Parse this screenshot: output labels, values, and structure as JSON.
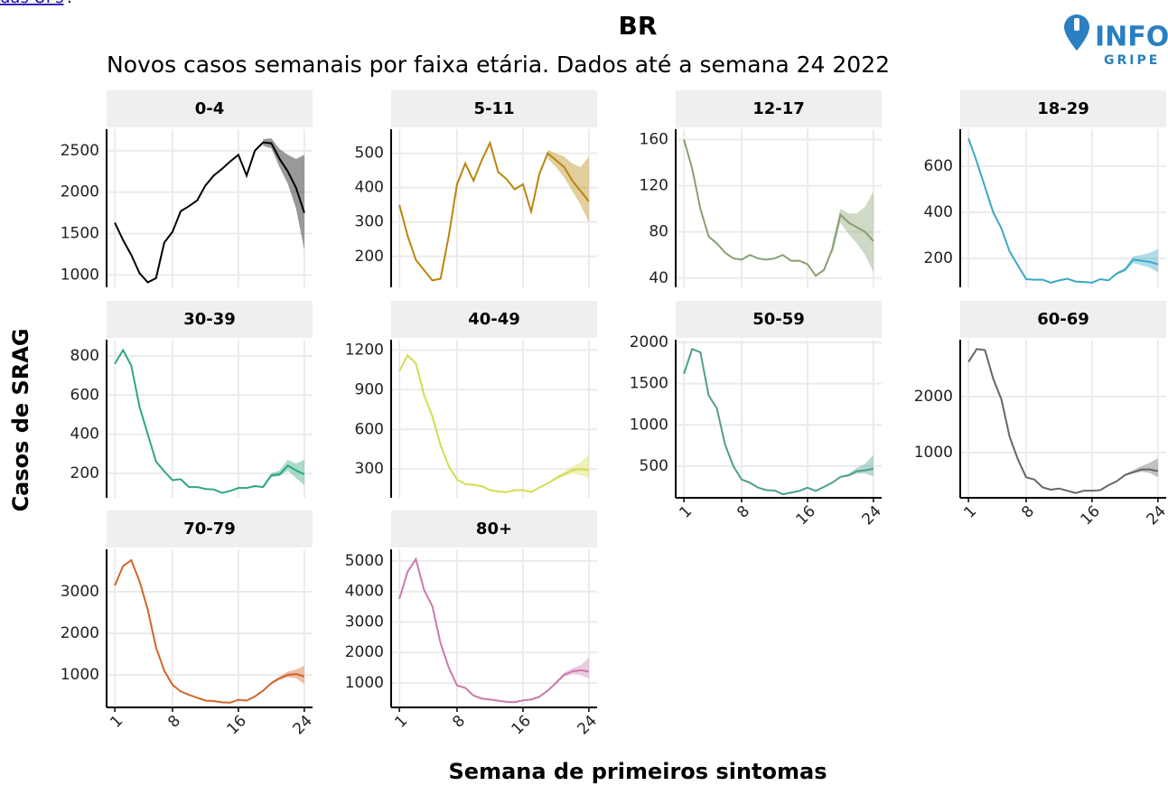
{
  "figure": {
    "link": "das UFs",
    "link_tail": ".",
    "title": "BR",
    "subtitle": "Novos casos semanais por faixa etária. Dados até a semana 24 2022",
    "logo_top": "INFO",
    "logo_bottom": "GRIPE",
    "y_label": "Casos de SRAG",
    "x_label": "Semana de primeiros sintomas"
  },
  "chart_data": [
    {
      "type": "line",
      "title": "0-4",
      "color": "#000000",
      "x": [
        1,
        2,
        3,
        4,
        5,
        6,
        7,
        8,
        9,
        10,
        11,
        12,
        13,
        14,
        15,
        16,
        17,
        18,
        19,
        20,
        21,
        22,
        23,
        24
      ],
      "values": [
        1630,
        1420,
        1240,
        1020,
        910,
        960,
        1390,
        1520,
        1770,
        1830,
        1900,
        2080,
        2200,
        2280,
        2370,
        2450,
        2200,
        2500,
        2600,
        2590,
        2400,
        2250,
        2050,
        1750
      ],
      "band_lower": [
        null,
        null,
        null,
        null,
        null,
        null,
        null,
        null,
        null,
        null,
        null,
        null,
        null,
        null,
        null,
        null,
        null,
        null,
        2560,
        2530,
        2300,
        2100,
        1800,
        1300
      ],
      "band_upper": [
        null,
        null,
        null,
        null,
        null,
        null,
        null,
        null,
        null,
        null,
        null,
        null,
        null,
        null,
        null,
        null,
        null,
        null,
        2640,
        2650,
        2520,
        2450,
        2400,
        2450
      ],
      "xlim": [
        0,
        25
      ],
      "xticks": [
        1,
        8,
        16,
        24
      ],
      "ylim": [
        850,
        2760
      ],
      "yticks": [
        1000,
        1500,
        2000,
        2500
      ]
    },
    {
      "type": "line",
      "title": "5-11",
      "color": "#b8860b",
      "x": [
        1,
        2,
        3,
        4,
        5,
        6,
        7,
        8,
        9,
        10,
        11,
        12,
        13,
        14,
        15,
        16,
        17,
        18,
        19,
        20,
        21,
        22,
        23,
        24
      ],
      "values": [
        350,
        260,
        190,
        160,
        130,
        135,
        260,
        410,
        470,
        420,
        480,
        530,
        445,
        425,
        395,
        410,
        330,
        440,
        500,
        480,
        460,
        420,
        390,
        360
      ],
      "band_lower": [
        null,
        null,
        null,
        null,
        null,
        null,
        null,
        null,
        null,
        null,
        null,
        null,
        null,
        null,
        null,
        null,
        null,
        null,
        485,
        460,
        430,
        390,
        350,
        300
      ],
      "band_upper": [
        null,
        null,
        null,
        null,
        null,
        null,
        null,
        null,
        null,
        null,
        null,
        null,
        null,
        null,
        null,
        null,
        null,
        null,
        510,
        500,
        490,
        470,
        460,
        490
      ],
      "xlim": [
        0,
        25
      ],
      "xticks": [
        1,
        8,
        16,
        24
      ],
      "ylim": [
        110,
        570
      ],
      "yticks": [
        200,
        300,
        400,
        500
      ]
    },
    {
      "type": "line",
      "title": "12-17",
      "color": "#87a06f",
      "x": [
        1,
        2,
        3,
        4,
        5,
        6,
        7,
        8,
        9,
        10,
        11,
        12,
        13,
        14,
        15,
        16,
        17,
        18,
        19,
        20,
        21,
        22,
        23,
        24
      ],
      "values": [
        160,
        135,
        100,
        76,
        70,
        62,
        57,
        56,
        60,
        57,
        56,
        57,
        60,
        55,
        55,
        52,
        42,
        47,
        65,
        95,
        88,
        84,
        80,
        72
      ],
      "band_lower": [
        null,
        null,
        null,
        null,
        null,
        null,
        null,
        null,
        null,
        null,
        null,
        null,
        null,
        null,
        null,
        null,
        null,
        null,
        60,
        88,
        78,
        70,
        60,
        45
      ],
      "band_upper": [
        null,
        null,
        null,
        null,
        null,
        null,
        null,
        null,
        null,
        null,
        null,
        null,
        null,
        null,
        null,
        null,
        null,
        null,
        70,
        100,
        96,
        96,
        102,
        115
      ],
      "xlim": [
        0,
        25
      ],
      "xticks": [
        1,
        8,
        16,
        24
      ],
      "ylim": [
        32,
        169
      ],
      "yticks": [
        40,
        80,
        120,
        160
      ]
    },
    {
      "type": "line",
      "title": "18-29",
      "color": "#3aa8c6",
      "x": [
        1,
        2,
        3,
        4,
        5,
        6,
        7,
        8,
        9,
        10,
        11,
        12,
        13,
        14,
        15,
        16,
        17,
        18,
        19,
        20,
        21,
        22,
        23,
        24
      ],
      "values": [
        720,
        620,
        510,
        400,
        330,
        230,
        170,
        110,
        108,
        108,
        95,
        105,
        112,
        100,
        98,
        95,
        110,
        105,
        135,
        150,
        195,
        190,
        185,
        175
      ],
      "band_lower": [
        null,
        null,
        null,
        null,
        null,
        null,
        null,
        null,
        null,
        null,
        null,
        null,
        null,
        null,
        null,
        null,
        null,
        null,
        130,
        145,
        180,
        170,
        160,
        140
      ],
      "band_upper": [
        null,
        null,
        null,
        null,
        null,
        null,
        null,
        null,
        null,
        null,
        null,
        null,
        null,
        null,
        null,
        null,
        null,
        null,
        140,
        160,
        210,
        215,
        225,
        240
      ],
      "xlim": [
        0,
        25
      ],
      "xticks": [
        1,
        8,
        16,
        24
      ],
      "ylim": [
        75,
        760
      ],
      "yticks": [
        200,
        400,
        600
      ]
    },
    {
      "type": "line",
      "title": "30-39",
      "color": "#2ca87a",
      "x": [
        1,
        2,
        3,
        4,
        5,
        6,
        7,
        8,
        9,
        10,
        11,
        12,
        13,
        14,
        15,
        16,
        17,
        18,
        19,
        20,
        21,
        22,
        23,
        24
      ],
      "values": [
        760,
        830,
        750,
        540,
        400,
        260,
        210,
        165,
        170,
        130,
        130,
        120,
        118,
        100,
        110,
        125,
        125,
        135,
        130,
        190,
        195,
        240,
        215,
        195
      ],
      "band_lower": [
        null,
        null,
        null,
        null,
        null,
        null,
        null,
        null,
        null,
        null,
        null,
        null,
        null,
        null,
        null,
        null,
        null,
        null,
        125,
        180,
        185,
        215,
        175,
        140
      ],
      "band_upper": [
        null,
        null,
        null,
        null,
        null,
        null,
        null,
        null,
        null,
        null,
        null,
        null,
        null,
        null,
        null,
        null,
        null,
        null,
        140,
        200,
        215,
        270,
        250,
        270
      ],
      "xlim": [
        0,
        25
      ],
      "xticks": [
        1,
        8,
        16,
        24
      ],
      "ylim": [
        75,
        883
      ],
      "yticks": [
        200,
        400,
        600,
        800
      ]
    },
    {
      "type": "line",
      "title": "40-49",
      "color": "#d4dc4e",
      "x": [
        1,
        2,
        3,
        4,
        5,
        6,
        7,
        8,
        9,
        10,
        11,
        12,
        13,
        14,
        15,
        16,
        17,
        18,
        19,
        20,
        21,
        22,
        23,
        24
      ],
      "values": [
        1040,
        1160,
        1100,
        860,
        700,
        480,
        320,
        220,
        185,
        180,
        170,
        140,
        130,
        125,
        140,
        140,
        125,
        160,
        190,
        230,
        260,
        290,
        300,
        290
      ],
      "band_lower": [
        null,
        null,
        null,
        null,
        null,
        null,
        null,
        null,
        null,
        null,
        null,
        null,
        null,
        null,
        null,
        null,
        null,
        null,
        185,
        220,
        245,
        265,
        255,
        230
      ],
      "band_upper": [
        null,
        null,
        null,
        null,
        null,
        null,
        null,
        null,
        null,
        null,
        null,
        null,
        null,
        null,
        null,
        null,
        null,
        null,
        195,
        240,
        280,
        320,
        350,
        410
      ],
      "xlim": [
        0,
        25
      ],
      "xticks": [
        1,
        8,
        16,
        24
      ],
      "ylim": [
        82,
        1279
      ],
      "yticks": [
        300,
        600,
        900,
        1200
      ]
    },
    {
      "type": "line",
      "title": "50-59",
      "color": "#4e9e8e",
      "x": [
        1,
        2,
        3,
        4,
        5,
        6,
        7,
        8,
        9,
        10,
        11,
        12,
        13,
        14,
        15,
        16,
        17,
        18,
        19,
        20,
        21,
        22,
        23,
        24
      ],
      "values": [
        1620,
        1920,
        1880,
        1360,
        1200,
        760,
        500,
        340,
        300,
        240,
        210,
        205,
        160,
        180,
        200,
        240,
        200,
        250,
        300,
        370,
        390,
        440,
        450,
        470
      ],
      "band_lower": [
        null,
        null,
        null,
        null,
        null,
        null,
        null,
        null,
        null,
        null,
        null,
        null,
        null,
        null,
        null,
        null,
        null,
        null,
        290,
        360,
        375,
        410,
        410,
        380
      ],
      "band_upper": [
        null,
        null,
        null,
        null,
        null,
        null,
        null,
        null,
        null,
        null,
        null,
        null,
        null,
        null,
        null,
        null,
        null,
        null,
        310,
        380,
        410,
        480,
        530,
        640
      ],
      "xlim": [
        0,
        25
      ],
      "xticks": [
        1,
        8,
        16,
        24
      ],
      "ylim": [
        117,
        2033
      ],
      "yticks": [
        500,
        1000,
        1500,
        2000
      ]
    },
    {
      "type": "line",
      "title": "60-69",
      "color": "#666666",
      "x": [
        1,
        2,
        3,
        4,
        5,
        6,
        7,
        8,
        9,
        10,
        11,
        12,
        13,
        14,
        15,
        16,
        17,
        18,
        19,
        20,
        21,
        22,
        23,
        24
      ],
      "values": [
        2620,
        2850,
        2830,
        2320,
        1950,
        1280,
        880,
        560,
        520,
        380,
        340,
        360,
        320,
        280,
        320,
        320,
        330,
        420,
        490,
        600,
        650,
        700,
        700,
        670
      ],
      "band_lower": [
        null,
        null,
        null,
        null,
        null,
        null,
        null,
        null,
        null,
        null,
        null,
        null,
        null,
        null,
        null,
        null,
        null,
        null,
        480,
        590,
        630,
        660,
        640,
        560
      ],
      "band_upper": [
        null,
        null,
        null,
        null,
        null,
        null,
        null,
        null,
        null,
        null,
        null,
        null,
        null,
        null,
        null,
        null,
        null,
        null,
        500,
        620,
        690,
        760,
        820,
        900
      ],
      "xlim": [
        0,
        25
      ],
      "xticks": [
        1,
        8,
        16,
        24
      ],
      "ylim": [
        194,
        3016
      ],
      "yticks": [
        1000,
        2000
      ]
    },
    {
      "type": "line",
      "title": "70-79",
      "color": "#d2652a",
      "x": [
        1,
        2,
        3,
        4,
        5,
        6,
        7,
        8,
        9,
        10,
        11,
        12,
        13,
        14,
        15,
        16,
        17,
        18,
        19,
        20,
        21,
        22,
        23,
        24
      ],
      "values": [
        3150,
        3620,
        3760,
        3250,
        2570,
        1660,
        1100,
        760,
        600,
        520,
        450,
        380,
        370,
        340,
        330,
        400,
        380,
        480,
        620,
        800,
        920,
        1000,
        1020,
        960
      ],
      "band_lower": [
        null,
        null,
        null,
        null,
        null,
        null,
        null,
        null,
        null,
        null,
        null,
        null,
        null,
        null,
        null,
        null,
        null,
        null,
        600,
        770,
        880,
        940,
        920,
        780
      ],
      "band_upper": [
        null,
        null,
        null,
        null,
        null,
        null,
        null,
        null,
        null,
        null,
        null,
        null,
        null,
        null,
        null,
        null,
        null,
        null,
        640,
        830,
        960,
        1080,
        1130,
        1220
      ],
      "xlim": [
        0,
        25
      ],
      "xticks": [
        1,
        8,
        16,
        24
      ],
      "ylim": [
        217,
        4022
      ],
      "yticks": [
        1000,
        2000,
        3000
      ]
    },
    {
      "type": "line",
      "title": "80+",
      "color": "#cc7aab",
      "x": [
        1,
        2,
        3,
        4,
        5,
        6,
        7,
        8,
        9,
        10,
        11,
        12,
        13,
        14,
        15,
        16,
        17,
        18,
        19,
        20,
        21,
        22,
        23,
        24
      ],
      "values": [
        3760,
        4650,
        5060,
        4050,
        3520,
        2300,
        1500,
        920,
        840,
        590,
        490,
        460,
        420,
        380,
        370,
        430,
        460,
        550,
        750,
        1000,
        1270,
        1380,
        1420,
        1370
      ],
      "band_lower": [
        null,
        null,
        null,
        null,
        null,
        null,
        null,
        null,
        null,
        null,
        null,
        null,
        null,
        null,
        null,
        null,
        null,
        null,
        720,
        960,
        1210,
        1290,
        1260,
        1150
      ],
      "band_upper": [
        null,
        null,
        null,
        null,
        null,
        null,
        null,
        null,
        null,
        null,
        null,
        null,
        null,
        null,
        null,
        null,
        null,
        null,
        780,
        1040,
        1340,
        1480,
        1580,
        1830
      ],
      "xlim": [
        0,
        25
      ],
      "xticks": [
        1,
        8,
        16,
        24
      ],
      "ylim": [
        200,
        5385
      ],
      "yticks": [
        1000,
        2000,
        3000,
        4000,
        5000
      ]
    }
  ]
}
